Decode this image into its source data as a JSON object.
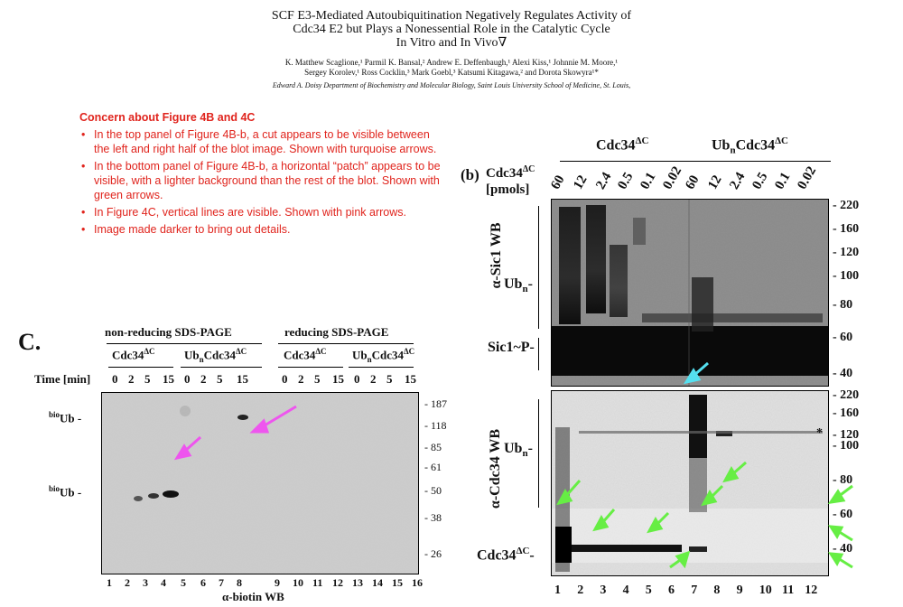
{
  "paper": {
    "title_lines": [
      "SCF E3-Mediated Autoubiquitination Negatively Regulates Activity of",
      "Cdc34 E2 but Plays a Nonessential Role in the Catalytic Cycle",
      "In Vitro and In Vivo∇"
    ],
    "authors_lines": [
      "K. Matthew Scaglione,¹ Parmil K. Bansal,² Andrew E. Deffenbaugh,¹ Alexi Kiss,¹ Johnnie M. Moore,¹",
      "Sergey Korolev,¹ Ross Cocklin,³ Mark Goebl,³ Katsumi Kitagawa,² and Dorota Skowyra¹*"
    ],
    "affiliation": "Edward A. Doisy Department of Biochemistry and Molecular Biology, Saint Louis University School of Medicine, St. Louis,"
  },
  "concern": {
    "heading": "Concern about Figure 4B and 4C",
    "bullets": [
      "In the top panel of Figure 4B-b, a cut appears to be visible between the left and right half of the blot image. Shown with turquoise arrows.",
      "In the bottom panel of Figure 4B-b, a horizontal “patch” appears to be visible, with a lighter background than the rest of the blot. Shown with green arrows.",
      "In Figure 4C, vertical lines are visible. Shown with pink arrows.",
      "Image made darker to bring out details."
    ],
    "color": "#e0241d"
  },
  "panel_c": {
    "letter": "C.",
    "nonreducing": "non-reducing SDS-PAGE",
    "reducing": "reducing SDS-PAGE",
    "cdc34": "Cdc34",
    "ubn": "Ub",
    "ubn_sub": "n",
    "dc_sup": "ΔC",
    "time_label": "Time [min]",
    "times": [
      "0",
      "2",
      "5",
      "15",
      "0",
      "2",
      "5",
      "15",
      "0",
      "2",
      "5",
      "15",
      "0",
      "2",
      "5",
      "15"
    ],
    "biotin_ub_sup": "bio",
    "biotin_ub": "Ub -",
    "mw": [
      "- 187",
      "- 118",
      "- 85",
      "- 61",
      "- 50",
      "- 38",
      "- 26"
    ],
    "lanes": [
      "1",
      "2",
      "3",
      "4",
      "5",
      "6",
      "7",
      "8",
      "9",
      "10",
      "11",
      "12",
      "13",
      "14",
      "15",
      "16"
    ],
    "footer": "α-biotin WB",
    "arrow_color": "#ee55ee"
  },
  "panel_b": {
    "letter": "(b)",
    "cdc34": "Cdc34",
    "ubn": "Ub",
    "ubn_sub": "n",
    "dc_sup": "ΔC",
    "row_label_1": "Cdc34",
    "row_label_1_sup": "ΔC",
    "row_label_2": "[pmols]",
    "pmols": [
      "60",
      "12",
      "2.4",
      "0.5",
      "0.1",
      "0.02",
      "60",
      "12",
      "2.4",
      "0.5",
      "0.1",
      "0.02"
    ],
    "top_side": "α-Sic1 WB",
    "bottom_side": "α-Cdc34 WB",
    "ubn_label": "Ub",
    "ubn_label_sub": "n",
    "sic1p": "Sic1~P-",
    "cdc34dc_label": "Cdc34",
    "mw_top": [
      "- 220",
      "- 160",
      "- 120",
      "- 100",
      "- 80",
      "- 60",
      "- 40"
    ],
    "mw_bottom": [
      "- 220",
      "- 160",
      "- 120",
      "- 100",
      "- 80",
      "- 60",
      "- 40"
    ],
    "asterisk": "*",
    "lanes": [
      "1",
      "2",
      "3",
      "4",
      "5",
      "6",
      "7",
      "8",
      "9",
      "10",
      "11",
      "12"
    ],
    "turquoise": "#55e0f0",
    "green": "#66ee44"
  }
}
